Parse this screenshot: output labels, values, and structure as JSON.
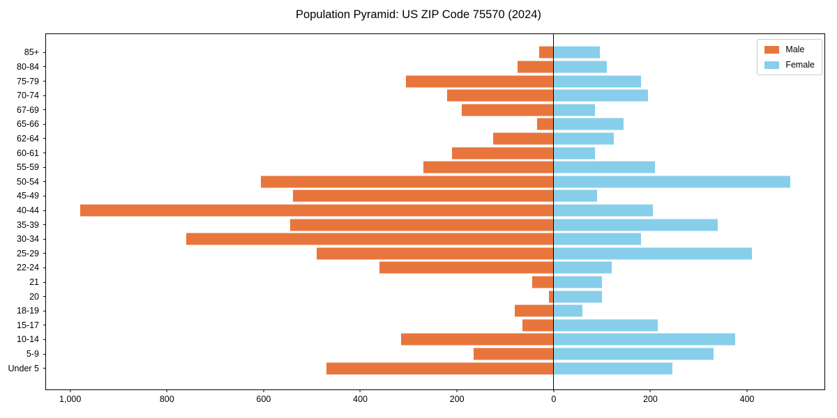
{
  "title": "Population Pyramid: US ZIP Code 75570 (2024)",
  "legend": {
    "male_label": "Male",
    "female_label": "Female"
  },
  "colors": {
    "male": "#e8763c",
    "female": "#87ceeb",
    "axis": "#000000",
    "legend_border": "#cccccc",
    "background": "#ffffff"
  },
  "chart_data": {
    "type": "bar",
    "orientation": "horizontal-pyramid",
    "title": "Population Pyramid: US ZIP Code 75570 (2024)",
    "categories": [
      "85+",
      "80-84",
      "75-79",
      "70-74",
      "67-69",
      "65-66",
      "62-64",
      "60-61",
      "55-59",
      "50-54",
      "45-49",
      "40-44",
      "35-39",
      "30-34",
      "25-29",
      "22-24",
      "21",
      "20",
      "18-19",
      "15-17",
      "10-14",
      "5-9",
      "Under 5"
    ],
    "series": [
      {
        "name": "Male",
        "color": "#e8763c",
        "values": [
          30,
          75,
          305,
          220,
          190,
          35,
          125,
          210,
          270,
          605,
          540,
          980,
          545,
          760,
          490,
          360,
          45,
          10,
          80,
          65,
          315,
          165,
          470
        ]
      },
      {
        "name": "Female",
        "color": "#87ceeb",
        "values": [
          95,
          110,
          180,
          195,
          85,
          145,
          125,
          85,
          210,
          490,
          90,
          205,
          340,
          180,
          410,
          120,
          100,
          100,
          60,
          215,
          375,
          330,
          245
        ]
      }
    ],
    "xlim": {
      "male_max": 1050,
      "female_max": 560
    },
    "x_ticks": [
      {
        "side": "male",
        "value": 1000,
        "label": "1,000"
      },
      {
        "side": "male",
        "value": 800,
        "label": "800"
      },
      {
        "side": "male",
        "value": 600,
        "label": "600"
      },
      {
        "side": "male",
        "value": 400,
        "label": "400"
      },
      {
        "side": "male",
        "value": 200,
        "label": "200"
      },
      {
        "side": "male",
        "value": 0,
        "label": "0"
      },
      {
        "side": "female",
        "value": 200,
        "label": "200"
      },
      {
        "side": "female",
        "value": 400,
        "label": "400"
      }
    ],
    "grid": false,
    "legend_position": "upper right"
  }
}
